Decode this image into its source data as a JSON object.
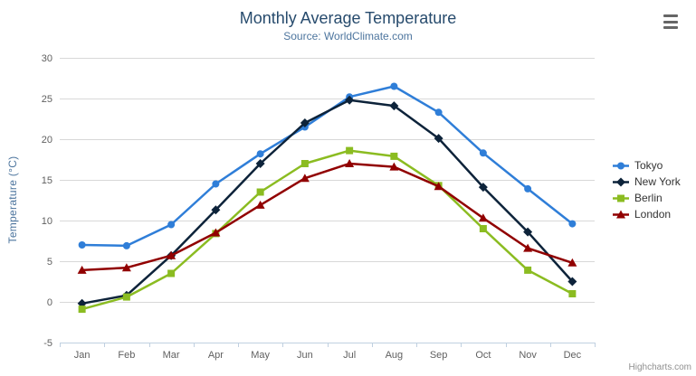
{
  "header": {
    "title": "Monthly Average Temperature",
    "subtitle": "Source: WorldClimate.com"
  },
  "credit_label": "Highcharts.com",
  "icons": {
    "context_menu": "hamburger-menu"
  },
  "colors": {
    "title": "#274b6d",
    "subtitle": "#4d759e",
    "axis_labels": "#606060",
    "gridline": "#d8d8d8",
    "axis_line": "#c0d0e0",
    "legend_text": "#333333"
  },
  "chart_data": {
    "type": "line",
    "title": "Monthly Average Temperature",
    "subtitle": "Source: WorldClimate.com",
    "xlabel": "",
    "ylabel": "Temperature (°C)",
    "ylim": [
      -5,
      30
    ],
    "y_ticks": [
      -5,
      0,
      5,
      10,
      15,
      20,
      25,
      30
    ],
    "grid": true,
    "legend_position": "right",
    "categories": [
      "Jan",
      "Feb",
      "Mar",
      "Apr",
      "May",
      "Jun",
      "Jul",
      "Aug",
      "Sep",
      "Oct",
      "Nov",
      "Dec"
    ],
    "series": [
      {
        "name": "Tokyo",
        "color": "#2f7ed8",
        "marker": "circle",
        "values": [
          7.0,
          6.9,
          9.5,
          14.5,
          18.2,
          21.5,
          25.2,
          26.5,
          23.3,
          18.3,
          13.9,
          9.6
        ]
      },
      {
        "name": "New York",
        "color": "#0d233a",
        "marker": "diamond",
        "values": [
          -0.2,
          0.8,
          5.7,
          11.3,
          17.0,
          22.0,
          24.8,
          24.1,
          20.1,
          14.1,
          8.6,
          2.5
        ]
      },
      {
        "name": "Berlin",
        "color": "#8bbc21",
        "marker": "square",
        "values": [
          -0.9,
          0.6,
          3.5,
          8.4,
          13.5,
          17.0,
          18.6,
          17.9,
          14.3,
          9.0,
          3.9,
          1.0
        ]
      },
      {
        "name": "London",
        "color": "#910000",
        "marker": "triangle",
        "values": [
          3.9,
          4.2,
          5.7,
          8.5,
          11.9,
          15.2,
          17.0,
          16.6,
          14.2,
          10.3,
          6.6,
          4.8
        ]
      }
    ]
  }
}
